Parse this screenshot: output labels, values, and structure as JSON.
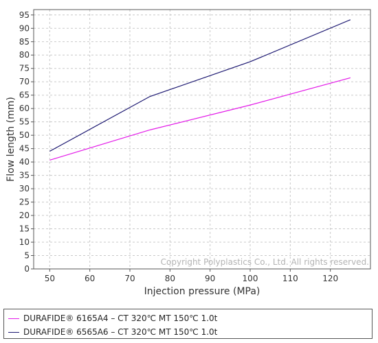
{
  "chart_data": {
    "type": "line",
    "xlabel": "Injection pressure (MPa)",
    "ylabel": "Flow length (mm)",
    "xlim": [
      46,
      130
    ],
    "ylim": [
      0,
      97
    ],
    "xticks": [
      50,
      60,
      70,
      80,
      90,
      100,
      110,
      120
    ],
    "yticks": [
      0,
      5,
      10,
      15,
      20,
      25,
      30,
      35,
      40,
      45,
      50,
      55,
      60,
      65,
      70,
      75,
      80,
      85,
      90,
      95
    ],
    "grid": true,
    "legend_position": "bottom",
    "watermark": "Copyright Polyplastics Co., Ltd. All rights reserved.",
    "series": [
      {
        "name": "DURAFIDE® 6165A4 – CT 320℃ MT 150℃ 1.0t",
        "color": "#e31ae8",
        "x": [
          50,
          75,
          100,
          125
        ],
        "y": [
          40.7,
          52.0,
          61.3,
          71.5
        ]
      },
      {
        "name": "DURAFIDE® 6565A6 – CT 320℃ MT 150℃ 1.0t",
        "color": "#1a1670",
        "x": [
          50,
          75,
          100,
          125
        ],
        "y": [
          44.0,
          64.5,
          77.5,
          93.2
        ]
      }
    ]
  }
}
